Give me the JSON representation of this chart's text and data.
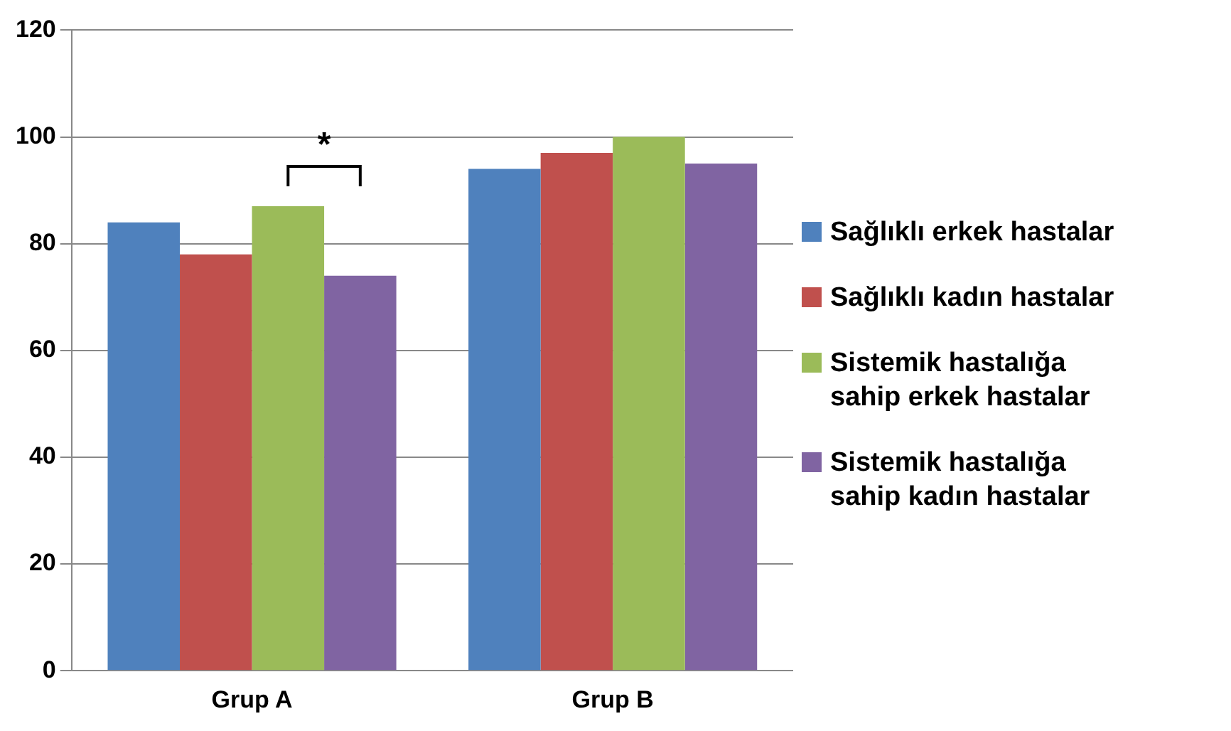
{
  "chart_data": {
    "type": "bar",
    "categories": [
      "Grup A",
      "Grup B"
    ],
    "series": [
      {
        "name": "Sağlıklı erkek hastalar",
        "color": "#4f81bd",
        "values": [
          84,
          94
        ]
      },
      {
        "name": "Sağlıklı kadın hastalar",
        "color": "#c0504d",
        "values": [
          78,
          97
        ]
      },
      {
        "name": "Sistemik hastalığa sahip erkek hastalar",
        "color": "#9bbb59",
        "values": [
          87,
          100
        ]
      },
      {
        "name": "Sistemik hastalığa sahip kadın hastalar",
        "color": "#8064a2",
        "values": [
          74,
          95
        ]
      }
    ],
    "ylim": [
      0,
      120
    ],
    "yticks": [
      0,
      20,
      40,
      60,
      80,
      100,
      120
    ],
    "grid": "y",
    "legend": "right",
    "annotations": [
      "*"
    ]
  }
}
